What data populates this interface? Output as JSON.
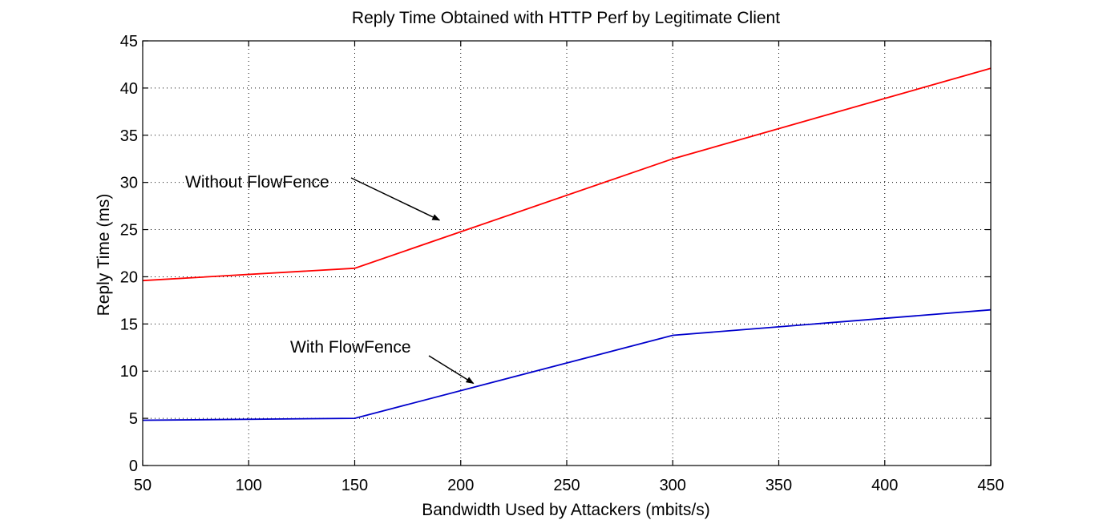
{
  "chart_data": {
    "type": "line",
    "title": "Reply Time Obtained with HTTP Perf by Legitimate Client",
    "xlabel": "Bandwidth Used by Attackers (mbits/s)",
    "ylabel": "Reply Time (ms)",
    "xlim": [
      50,
      450
    ],
    "ylim": [
      0,
      45
    ],
    "xticks": [
      50,
      100,
      150,
      200,
      250,
      300,
      350,
      400,
      450
    ],
    "yticks": [
      0,
      5,
      10,
      15,
      20,
      25,
      30,
      35,
      40,
      45
    ],
    "grid": true,
    "series": [
      {
        "name": "Without FlowFence",
        "color": "#ff0000",
        "x": [
          50,
          150,
          300,
          450
        ],
        "y": [
          19.6,
          20.9,
          32.5,
          42.1
        ]
      },
      {
        "name": "With FlowFence",
        "color": "#0000cc",
        "x": [
          50,
          150,
          300,
          450
        ],
        "y": [
          4.8,
          5.0,
          13.8,
          16.5
        ]
      }
    ],
    "annotations": [
      {
        "text": "Without FlowFence",
        "arrow_target": [
          190,
          26.0
        ]
      },
      {
        "text": "With FlowFence",
        "arrow_target": [
          206,
          8.7
        ]
      }
    ]
  }
}
